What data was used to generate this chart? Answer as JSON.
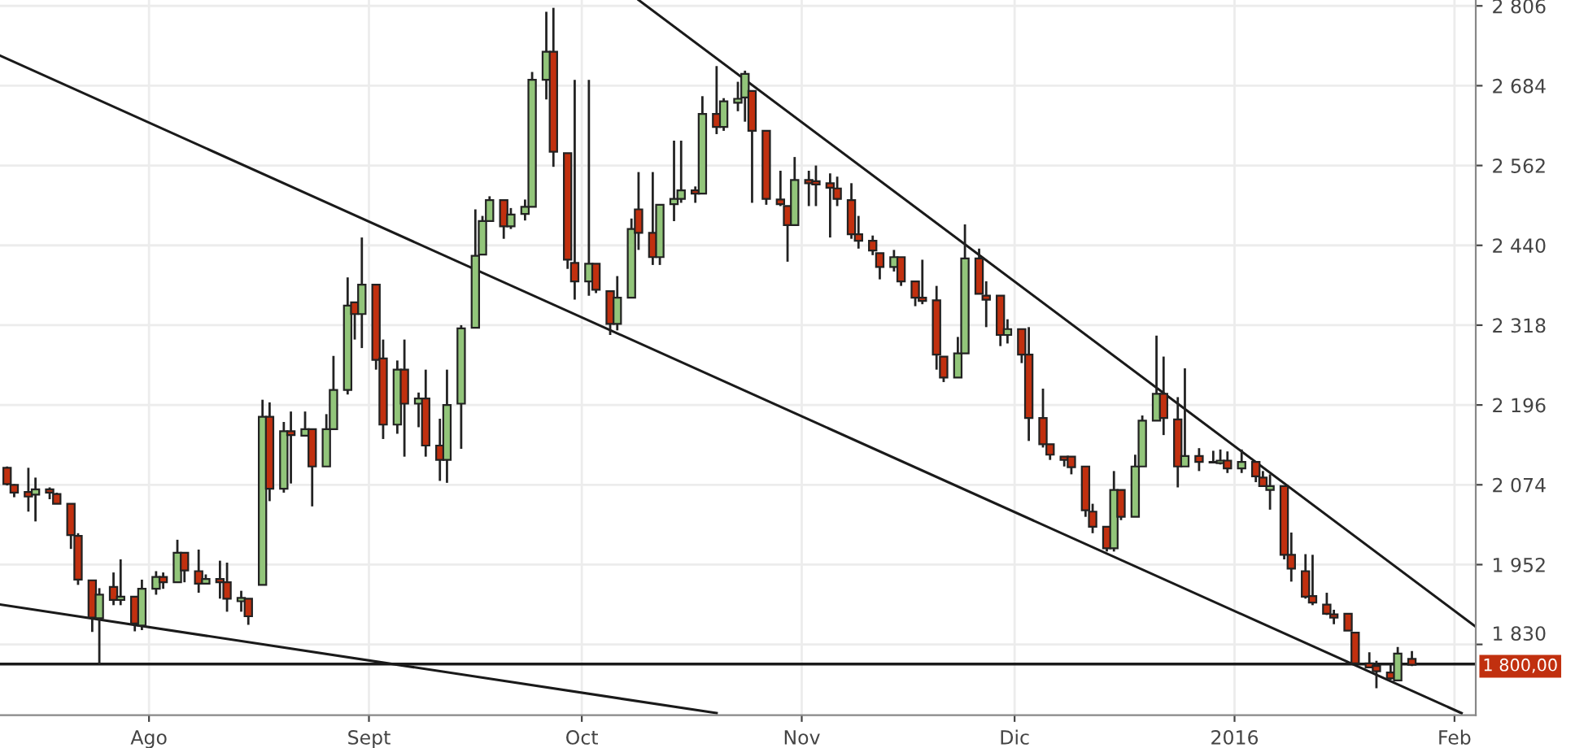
{
  "chart_data": {
    "type": "candlestick",
    "x": [
      "2015-07-12",
      "2015-07-13",
      "2015-07-15",
      "2015-07-16",
      "2015-07-18",
      "2015-07-19",
      "2015-07-21",
      "2015-07-22",
      "2015-07-24",
      "2015-07-25",
      "2015-07-27",
      "2015-07-28",
      "2015-07-30",
      "2015-07-31",
      "2015-08-02",
      "2015-08-03",
      "2015-08-05",
      "2015-08-06",
      "2015-08-08",
      "2015-08-09",
      "2015-08-11",
      "2015-08-12",
      "2015-08-14",
      "2015-08-15",
      "2015-08-17",
      "2015-08-18",
      "2015-08-20",
      "2015-08-21",
      "2015-08-23",
      "2015-08-24",
      "2015-08-26",
      "2015-08-27",
      "2015-08-29",
      "2015-08-30",
      "2015-08-31",
      "2015-09-02",
      "2015-09-03",
      "2015-09-05",
      "2015-09-06",
      "2015-09-08",
      "2015-09-09",
      "2015-09-11",
      "2015-09-12",
      "2015-09-14",
      "2015-09-16",
      "2015-09-17",
      "2015-09-18",
      "2015-09-20",
      "2015-09-21",
      "2015-09-23",
      "2015-09-24",
      "2015-09-26",
      "2015-09-27",
      "2015-09-29",
      "2015-09-30",
      "2015-10-02",
      "2015-10-03",
      "2015-10-05",
      "2015-10-06",
      "2015-10-08",
      "2015-10-09",
      "2015-10-11",
      "2015-10-12",
      "2015-10-14",
      "2015-10-15",
      "2015-10-17",
      "2015-10-18",
      "2015-10-20",
      "2015-10-21",
      "2015-10-23",
      "2015-10-24",
      "2015-10-25",
      "2015-10-27",
      "2015-10-29",
      "2015-10-30",
      "2015-10-31",
      "2015-11-02",
      "2015-11-03",
      "2015-11-05",
      "2015-11-06",
      "2015-11-08",
      "2015-11-09",
      "2015-11-11",
      "2015-11-12",
      "2015-11-14",
      "2015-11-15",
      "2015-11-17",
      "2015-11-18",
      "2015-11-20",
      "2015-11-21",
      "2015-11-23",
      "2015-11-24",
      "2015-11-26",
      "2015-11-27",
      "2015-11-29",
      "2015-11-30",
      "2015-12-02",
      "2015-12-03",
      "2015-12-05",
      "2015-12-06",
      "2015-12-08",
      "2015-12-09",
      "2015-12-11",
      "2015-12-12",
      "2015-12-14",
      "2015-12-15",
      "2015-12-16",
      "2015-12-18",
      "2015-12-19",
      "2015-12-21",
      "2015-12-22",
      "2015-12-24",
      "2015-12-25",
      "2015-12-27",
      "2015-12-29",
      "2015-12-30",
      "2015-12-31",
      "2016-01-02",
      "2016-01-04",
      "2016-01-05",
      "2016-01-06",
      "2016-01-08",
      "2016-01-09",
      "2016-01-11",
      "2016-01-12",
      "2016-01-14",
      "2016-01-15",
      "2016-01-17",
      "2016-01-18",
      "2016-01-20",
      "2016-01-21",
      "2016-01-23",
      "2016-01-24",
      "2016-01-26"
    ],
    "ohlc": [
      [
        2100,
        2102,
        2073,
        2075
      ],
      [
        2074,
        2075,
        2055,
        2062
      ],
      [
        2063,
        2100,
        2033,
        2056
      ],
      [
        2059,
        2085,
        2018,
        2067
      ],
      [
        2067,
        2070,
        2052,
        2062
      ],
      [
        2060,
        2062,
        2045,
        2045
      ],
      [
        2045,
        2045,
        1976,
        1997
      ],
      [
        1996,
        2000,
        1921,
        1929
      ],
      [
        1928,
        1928,
        1849,
        1871
      ],
      [
        1870,
        1916,
        1799,
        1906
      ],
      [
        1918,
        1940,
        1890,
        1898
      ],
      [
        1898,
        1960,
        1890,
        1903
      ],
      [
        1903,
        1903,
        1850,
        1862
      ],
      [
        1859,
        1929,
        1852,
        1915
      ],
      [
        1915,
        1942,
        1906,
        1933
      ],
      [
        1933,
        1940,
        1915,
        1925
      ],
      [
        1925,
        1990,
        1925,
        1970
      ],
      [
        1970,
        1970,
        1925,
        1943
      ],
      [
        1942,
        1975,
        1909,
        1923
      ],
      [
        1923,
        1937,
        1922,
        1930
      ],
      [
        1930,
        1958,
        1900,
        1925
      ],
      [
        1925,
        1955,
        1880,
        1900
      ],
      [
        1896,
        1912,
        1880,
        1901
      ],
      [
        1900,
        1900,
        1860,
        1873
      ],
      [
        1921,
        2204,
        1921,
        2178
      ],
      [
        2178,
        2200,
        2049,
        2068
      ],
      [
        2068,
        2170,
        2062,
        2156
      ],
      [
        2156,
        2186,
        2076,
        2150
      ],
      [
        2149,
        2186,
        2149,
        2159
      ],
      [
        2159,
        2159,
        2041,
        2102
      ],
      [
        2102,
        2182,
        2102,
        2159
      ],
      [
        2159,
        2271,
        2159,
        2219
      ],
      [
        2219,
        2391,
        2212,
        2348
      ],
      [
        2353,
        2353,
        2296,
        2335
      ],
      [
        2335,
        2452,
        2283,
        2380
      ],
      [
        2380,
        2380,
        2250,
        2265
      ],
      [
        2267,
        2296,
        2144,
        2166
      ],
      [
        2166,
        2264,
        2152,
        2250
      ],
      [
        2250,
        2296,
        2117,
        2198
      ],
      [
        2198,
        2215,
        2162,
        2206
      ],
      [
        2206,
        2250,
        2117,
        2134
      ],
      [
        2134,
        2175,
        2080,
        2112
      ],
      [
        2112,
        2250,
        2077,
        2196
      ],
      [
        2198,
        2318,
        2129,
        2313
      ],
      [
        2314,
        2495,
        2314,
        2424
      ],
      [
        2426,
        2485,
        2426,
        2477
      ],
      [
        2477,
        2515,
        2477,
        2509
      ],
      [
        2509,
        2509,
        2450,
        2469
      ],
      [
        2469,
        2497,
        2465,
        2487
      ],
      [
        2488,
        2510,
        2478,
        2499
      ],
      [
        2499,
        2705,
        2499,
        2693
      ],
      [
        2693,
        2797,
        2663,
        2736
      ],
      [
        2736,
        2803,
        2560,
        2583
      ],
      [
        2581,
        2581,
        2404,
        2418
      ],
      [
        2413,
        2693,
        2357,
        2385
      ],
      [
        2385,
        2693,
        2363,
        2412
      ],
      [
        2412,
        2412,
        2367,
        2372
      ],
      [
        2370,
        2370,
        2303,
        2320
      ],
      [
        2320,
        2393,
        2310,
        2360
      ],
      [
        2360,
        2481,
        2360,
        2465
      ],
      [
        2495,
        2552,
        2433,
        2459
      ],
      [
        2459,
        2552,
        2410,
        2422
      ],
      [
        2422,
        2502,
        2410,
        2502
      ],
      [
        2503,
        2600,
        2477,
        2511
      ],
      [
        2511,
        2600,
        2505,
        2524
      ],
      [
        2524,
        2530,
        2505,
        2519
      ],
      [
        2519,
        2668,
        2519,
        2641
      ],
      [
        2641,
        2714,
        2610,
        2621
      ],
      [
        2621,
        2665,
        2615,
        2660
      ],
      [
        2658,
        2690,
        2645,
        2664
      ],
      [
        2666,
        2707,
        2629,
        2702
      ],
      [
        2676,
        2676,
        2505,
        2615
      ],
      [
        2615,
        2615,
        2502,
        2511
      ],
      [
        2510,
        2554,
        2500,
        2503
      ],
      [
        2500,
        2500,
        2415,
        2471
      ],
      [
        2471,
        2575,
        2471,
        2540
      ],
      [
        2540,
        2554,
        2500,
        2535
      ],
      [
        2538,
        2562,
        2500,
        2533
      ],
      [
        2535,
        2550,
        2452,
        2528
      ],
      [
        2527,
        2545,
        2500,
        2511
      ],
      [
        2509,
        2535,
        2450,
        2457
      ],
      [
        2457,
        2485,
        2435,
        2447
      ],
      [
        2447,
        2455,
        2425,
        2432
      ],
      [
        2428,
        2428,
        2388,
        2407
      ],
      [
        2407,
        2433,
        2400,
        2422
      ],
      [
        2422,
        2422,
        2378,
        2385
      ],
      [
        2385,
        2385,
        2347,
        2360
      ],
      [
        2360,
        2418,
        2350,
        2355
      ],
      [
        2356,
        2378,
        2250,
        2273
      ],
      [
        2270,
        2270,
        2231,
        2238
      ],
      [
        2238,
        2300,
        2238,
        2275
      ],
      [
        2275,
        2472,
        2275,
        2420
      ],
      [
        2420,
        2435,
        2366,
        2366
      ],
      [
        2363,
        2385,
        2315,
        2357
      ],
      [
        2363,
        2363,
        2286,
        2303
      ],
      [
        2303,
        2327,
        2290,
        2312
      ],
      [
        2312,
        2312,
        2260,
        2273
      ],
      [
        2273,
        2315,
        2141,
        2176
      ],
      [
        2176,
        2221,
        2131,
        2136
      ],
      [
        2136,
        2136,
        2112,
        2120
      ],
      [
        2117,
        2117,
        2102,
        2112
      ],
      [
        2117,
        2117,
        2090,
        2101
      ],
      [
        2102,
        2102,
        2025,
        2035
      ],
      [
        2033,
        2045,
        2000,
        2010
      ],
      [
        2010,
        2010,
        1972,
        1977
      ],
      [
        1977,
        2095,
        1972,
        2066
      ],
      [
        2066,
        2066,
        2020,
        2025
      ],
      [
        2025,
        2120,
        2025,
        2102
      ],
      [
        2102,
        2180,
        2102,
        2172
      ],
      [
        2172,
        2302,
        2172,
        2213
      ],
      [
        2213,
        2270,
        2150,
        2176
      ],
      [
        2174,
        2208,
        2070,
        2102
      ],
      [
        2102,
        2252,
        2102,
        2118
      ],
      [
        2118,
        2130,
        2095,
        2109
      ],
      [
        2108,
        2126,
        2108,
        2109
      ],
      [
        2107,
        2128,
        2105,
        2111
      ],
      [
        2111,
        2125,
        2092,
        2099
      ],
      [
        2099,
        2128,
        2092,
        2109
      ],
      [
        2109,
        2109,
        2078,
        2087
      ],
      [
        2085,
        2095,
        2072,
        2072
      ],
      [
        2066,
        2090,
        2036,
        2072
      ],
      [
        2072,
        2072,
        1960,
        1967
      ],
      [
        1967,
        2001,
        1926,
        1946
      ],
      [
        1942,
        1968,
        1900,
        1903
      ],
      [
        1904,
        1967,
        1890,
        1894
      ],
      [
        1891,
        1909,
        1875,
        1877
      ],
      [
        1876,
        1883,
        1861,
        1871
      ],
      [
        1877,
        1877,
        1851,
        1851
      ],
      [
        1848,
        1848,
        1801,
        1801
      ],
      [
        1801,
        1818,
        1795,
        1795
      ],
      [
        1797,
        1805,
        1763,
        1789
      ],
      [
        1787,
        1800,
        1776,
        1778
      ],
      [
        1775,
        1826,
        1775,
        1816
      ],
      [
        1808,
        1820,
        1797,
        1799
      ]
    ],
    "series": [
      {
        "type": "line",
        "color": "#1a1a1a",
        "x": [
          "2015-10-09",
          "2016-02-04"
        ],
        "values": [
          2815,
          1857
        ]
      },
      {
        "type": "line",
        "color": "#1a1a1a",
        "x": [
          "2015-07-11",
          "2016-02-02"
        ],
        "values": [
          2730,
          1725
        ]
      },
      {
        "type": "line",
        "color": "#1a1a1a",
        "x": [
          "2015-07-11",
          "2015-10-20"
        ],
        "values": [
          1891,
          1725
        ]
      }
    ],
    "ref_lines": [
      {
        "axis": "y",
        "value": 1800,
        "label": "1 800,00",
        "color": "#1a1a1a"
      }
    ],
    "xlim": [
      "2015-07-11",
      "2016-02-04"
    ],
    "xticks": [
      {
        "value": "2015-08-01",
        "label": "Ago"
      },
      {
        "value": "2015-09-01",
        "label": "Sept"
      },
      {
        "value": "2015-10-01",
        "label": "Oct"
      },
      {
        "value": "2015-11-01",
        "label": "Nov"
      },
      {
        "value": "2015-12-01",
        "label": "Dic"
      },
      {
        "value": "2016-01-01",
        "label": "2016"
      },
      {
        "value": "2016-02-01",
        "label": "Feb"
      }
    ],
    "ylim": [
      1722,
      2815
    ],
    "yticks": [
      {
        "value": 1830,
        "label": "1 830"
      },
      {
        "value": 1952,
        "label": "1 952"
      },
      {
        "value": 2074,
        "label": "2 074"
      },
      {
        "value": 2196,
        "label": "2 196"
      },
      {
        "value": 2318,
        "label": "2 318"
      },
      {
        "value": 2440,
        "label": "2 440"
      },
      {
        "value": 2562,
        "label": "2 562"
      },
      {
        "value": 2684,
        "label": "2 684"
      },
      {
        "value": 2806,
        "label": "2 806"
      }
    ],
    "grid": true
  }
}
